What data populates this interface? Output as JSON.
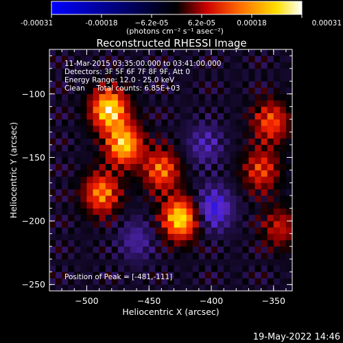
{
  "chart_data": {
    "type": "heatmap",
    "title": "Reconstructed RHESSI Image",
    "xlabel": "Heliocentric X (arcsec)",
    "ylabel": "Heliocentric Y (arcsec)",
    "xlim": [
      -530,
      -335
    ],
    "ylim": [
      -255,
      -65
    ],
    "x_ticks": [
      -500,
      -450,
      -400,
      -350
    ],
    "y_ticks": [
      -100,
      -150,
      -200,
      -250
    ],
    "x_tick_labels": [
      "−500",
      "−450",
      "−400",
      "−350"
    ],
    "y_tick_labels": [
      "−100",
      "−150",
      "−200",
      "−250"
    ],
    "colorbar": {
      "range": [
        -0.00031,
        0.00031
      ],
      "tick_labels": [
        "-0.00031",
        "-0.00018",
        "−6.2e-05",
        "6.2e-05",
        "0.00018",
        "0.00031"
      ],
      "units_label": "(photons cm⁻² s⁻¹ asec⁻²)",
      "colormap_stops": [
        "#0000ff",
        "#000000",
        "#ff0000",
        "#ff8c00",
        "#ffff00",
        "#ffffff"
      ]
    },
    "info_lines": [
      "11-Mar-2015 03:35:00.000 to 03:41:00.000",
      "Detectors: 3F 5F 6F 7F 8F 9F, Att 0",
      "Energy Range: 12.0 - 25.0 keV",
      "Clean     Total counts: 6.85E+03"
    ],
    "peak_text": "Position of Peak = [-481,-111]",
    "peak_position": [
      -481,
      -111
    ],
    "bright_regions": [
      {
        "x": -482,
        "y": -112,
        "value": 0.00031
      },
      {
        "x": -470,
        "y": -140,
        "value": 0.00028
      },
      {
        "x": -488,
        "y": -178,
        "value": 0.00022
      },
      {
        "x": -425,
        "y": -198,
        "value": 0.0003
      },
      {
        "x": -440,
        "y": -160,
        "value": 0.0002
      },
      {
        "x": -352,
        "y": -122,
        "value": 0.00018
      },
      {
        "x": -360,
        "y": -160,
        "value": 0.00016
      },
      {
        "x": -345,
        "y": -205,
        "value": 0.00012
      }
    ],
    "dark_regions": [
      {
        "x": -398,
        "y": -190,
        "value": -0.00018
      },
      {
        "x": -460,
        "y": -215,
        "value": -9e-05
      },
      {
        "x": -405,
        "y": -140,
        "value": -0.0001
      }
    ]
  },
  "footer": {
    "timestamp": "19-May-2022 14:46"
  }
}
